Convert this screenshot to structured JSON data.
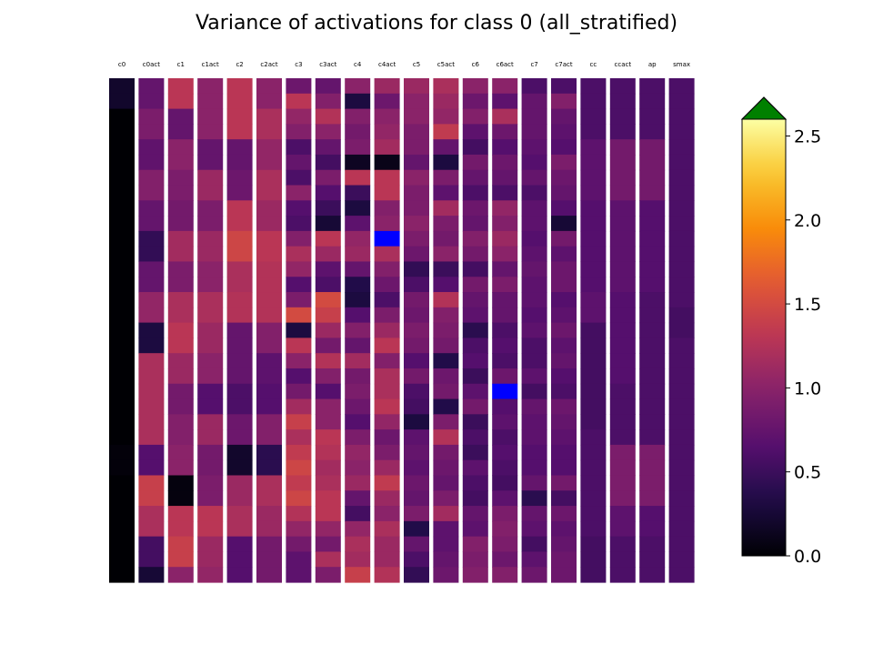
{
  "chart_data": {
    "type": "heatmap",
    "title": "Variance of activations for class 0 (all_stratified)",
    "columns": [
      "c0",
      "c0act",
      "c1",
      "c1act",
      "c2",
      "c2act",
      "c3",
      "c3act",
      "c4",
      "c4act",
      "c5",
      "c5act",
      "c6",
      "c6act",
      "c7",
      "c7act",
      "cc",
      "ccact",
      "ap",
      "smax"
    ],
    "colorbar": {
      "colormap": "inferno",
      "vmin": 0.0,
      "vmax": 2.6,
      "ticks": [
        0.0,
        0.5,
        1.0,
        1.5,
        2.0,
        2.5
      ],
      "tick_labels": [
        "0.0",
        "0.5",
        "1.0",
        "1.5",
        "2.0",
        "2.5"
      ],
      "extend": "max",
      "over_color": "#008000",
      "under_color": "#0000ff"
    },
    "columns_data": [
      {
        "name": "c0",
        "bins": 33,
        "values": [
          0.2,
          0.2,
          0,
          0,
          0,
          0,
          0,
          0,
          0,
          0,
          0,
          0,
          0,
          0,
          0,
          0,
          0,
          0,
          0,
          0,
          0,
          0,
          0,
          0,
          0.03,
          0.03,
          0,
          0,
          0,
          0,
          0,
          0,
          0
        ]
      },
      {
        "name": "c0act",
        "bins": 33,
        "values": [
          0.75,
          0.75,
          0.9,
          0.9,
          0.72,
          0.72,
          0.95,
          0.95,
          0.75,
          0.75,
          0.45,
          0.45,
          0.75,
          0.75,
          1.05,
          1.05,
          0.3,
          0.3,
          1.2,
          1.2,
          1.2,
          1.2,
          1.2,
          1.2,
          0.65,
          0.65,
          1.4,
          1.4,
          1.2,
          1.2,
          0.55,
          0.55,
          0.25
        ]
      },
      {
        "name": "c1",
        "bins": 33,
        "values": [
          1.3,
          1.3,
          0.75,
          0.75,
          1.0,
          1.0,
          0.9,
          0.9,
          0.85,
          0.85,
          1.15,
          1.15,
          0.9,
          0.9,
          1.2,
          1.2,
          1.3,
          1.3,
          1.1,
          1.1,
          0.85,
          0.85,
          0.95,
          0.95,
          1.0,
          1.0,
          0.05,
          0.05,
          1.3,
          1.3,
          1.4,
          1.4,
          1.0
        ]
      },
      {
        "name": "c1act",
        "bins": 33,
        "values": [
          1.0,
          1.0,
          1.0,
          1.0,
          0.75,
          0.75,
          1.1,
          1.1,
          0.9,
          0.9,
          1.1,
          1.1,
          1.0,
          1.0,
          1.2,
          1.2,
          1.1,
          1.1,
          1.0,
          1.0,
          0.65,
          0.65,
          1.1,
          1.1,
          0.85,
          0.85,
          0.9,
          0.9,
          1.3,
          1.3,
          1.1,
          1.1,
          1.05
        ]
      },
      {
        "name": "c2",
        "bins": 33,
        "values": [
          1.3,
          1.3,
          1.3,
          1.3,
          0.75,
          0.75,
          0.8,
          0.8,
          1.3,
          1.3,
          1.45,
          1.45,
          1.2,
          1.2,
          1.25,
          1.25,
          0.75,
          0.75,
          0.75,
          0.75,
          0.6,
          0.6,
          0.8,
          0.8,
          0.2,
          0.2,
          1.1,
          1.1,
          1.2,
          1.2,
          0.65,
          0.65,
          0.65
        ]
      },
      {
        "name": "c2act",
        "bins": 33,
        "values": [
          1.0,
          1.0,
          1.2,
          1.2,
          1.05,
          1.05,
          1.2,
          1.2,
          1.1,
          1.1,
          1.3,
          1.3,
          1.25,
          1.25,
          1.25,
          1.25,
          0.95,
          0.95,
          0.7,
          0.7,
          0.65,
          0.65,
          0.95,
          0.95,
          0.4,
          0.4,
          1.2,
          1.2,
          1.1,
          1.1,
          0.85,
          0.85,
          0.85
        ]
      },
      {
        "name": "c3",
        "bins": 33,
        "values": [
          0.8,
          1.3,
          1.05,
          0.95,
          0.6,
          0.75,
          0.6,
          1.0,
          0.65,
          0.6,
          0.95,
          1.2,
          1.05,
          0.65,
          0.9,
          1.5,
          0.3,
          1.3,
          1.0,
          0.65,
          0.85,
          1.15,
          1.4,
          1.2,
          1.35,
          1.45,
          1.35,
          1.45,
          1.25,
          1.05,
          0.85,
          0.7,
          0.7
        ]
      },
      {
        "name": "c3act",
        "bins": 33,
        "values": [
          0.75,
          0.95,
          1.25,
          1.0,
          0.75,
          0.55,
          0.9,
          0.65,
          0.5,
          0.25,
          1.3,
          1.1,
          0.7,
          0.6,
          1.5,
          1.4,
          1.1,
          0.85,
          1.25,
          0.95,
          0.65,
          1.0,
          1.0,
          1.3,
          1.25,
          1.15,
          1.2,
          1.3,
          1.3,
          1.05,
          0.85,
          1.2,
          0.9
        ]
      },
      {
        "name": "c4",
        "bins": 33,
        "values": [
          1.0,
          0.3,
          0.95,
          0.85,
          0.9,
          0.15,
          1.3,
          0.5,
          0.3,
          0.7,
          1.05,
          1.1,
          0.75,
          0.35,
          0.3,
          0.65,
          0.95,
          0.75,
          1.15,
          0.85,
          0.9,
          0.8,
          0.65,
          0.9,
          1.05,
          1.0,
          1.1,
          0.75,
          0.55,
          1.05,
          1.2,
          1.15,
          1.4
        ]
      },
      {
        "name": "c4act",
        "bins": 33,
        "values": [
          1.1,
          0.8,
          1.0,
          1.05,
          1.15,
          0.1,
          1.3,
          1.3,
          0.95,
          1.0,
          -1,
          1.2,
          0.95,
          0.8,
          0.6,
          0.9,
          1.1,
          1.3,
          0.95,
          1.2,
          1.2,
          1.3,
          1.05,
          0.8,
          0.9,
          1.1,
          1.35,
          1.1,
          1.0,
          1.2,
          1.1,
          1.1,
          1.25
        ]
      },
      {
        "name": "c5",
        "bins": 33,
        "values": [
          1.1,
          1.0,
          1.0,
          0.9,
          0.9,
          0.75,
          1.0,
          0.9,
          0.9,
          1.0,
          0.9,
          0.8,
          0.45,
          0.6,
          0.85,
          0.8,
          0.9,
          0.85,
          0.65,
          0.85,
          0.6,
          0.55,
          0.3,
          0.7,
          0.75,
          0.7,
          0.8,
          0.75,
          0.9,
          0.35,
          0.75,
          0.6,
          0.45
        ]
      },
      {
        "name": "c5act",
        "bins": 33,
        "values": [
          1.2,
          1.1,
          1.05,
          1.35,
          0.75,
          0.3,
          0.9,
          0.7,
          1.15,
          0.9,
          0.85,
          1.0,
          0.5,
          0.65,
          1.25,
          0.95,
          0.9,
          0.85,
          0.35,
          0.8,
          0.85,
          0.35,
          0.9,
          1.25,
          0.85,
          0.8,
          0.75,
          0.9,
          1.15,
          0.7,
          0.7,
          0.75,
          0.8
        ]
      },
      {
        "name": "c6",
        "bins": 33,
        "values": [
          1.0,
          0.8,
          0.95,
          0.7,
          0.55,
          0.85,
          0.75,
          0.6,
          0.8,
          0.75,
          0.95,
          0.85,
          0.55,
          0.85,
          0.75,
          0.7,
          0.4,
          0.6,
          0.65,
          0.5,
          0.7,
          0.85,
          0.5,
          0.6,
          0.5,
          0.7,
          0.6,
          0.55,
          0.75,
          0.7,
          0.95,
          0.9,
          0.95
        ]
      },
      {
        "name": "c6act",
        "bins": 33,
        "values": [
          1.0,
          0.7,
          1.2,
          0.8,
          0.65,
          0.8,
          0.75,
          0.6,
          1.05,
          0.95,
          1.1,
          1.0,
          0.75,
          0.9,
          0.75,
          0.75,
          0.6,
          0.65,
          0.6,
          0.8,
          -1,
          0.65,
          0.7,
          0.6,
          0.65,
          0.6,
          0.55,
          0.7,
          0.9,
          0.95,
          0.9,
          0.8,
          0.95
        ]
      },
      {
        "name": "c7",
        "bins": 33,
        "values": [
          0.6,
          0.75,
          0.75,
          0.75,
          0.7,
          0.65,
          0.75,
          0.6,
          0.7,
          0.7,
          0.65,
          0.7,
          0.75,
          0.7,
          0.7,
          0.65,
          0.7,
          0.6,
          0.6,
          0.7,
          0.55,
          0.75,
          0.7,
          0.7,
          0.65,
          0.65,
          0.75,
          0.4,
          0.75,
          0.7,
          0.55,
          0.7,
          0.8
        ]
      },
      {
        "name": "c7act",
        "bins": 33,
        "values": [
          0.6,
          0.95,
          0.75,
          0.7,
          0.65,
          0.9,
          0.8,
          0.75,
          0.65,
          0.25,
          0.85,
          0.7,
          0.8,
          0.8,
          0.65,
          0.7,
          0.8,
          0.7,
          0.75,
          0.65,
          0.6,
          0.8,
          0.75,
          0.7,
          0.65,
          0.65,
          0.85,
          0.55,
          0.8,
          0.7,
          0.75,
          0.8,
          0.8
        ]
      },
      {
        "name": "cc",
        "bins": 33,
        "values": [
          0.6,
          0.6,
          0.6,
          0.6,
          0.7,
          0.7,
          0.7,
          0.7,
          0.65,
          0.65,
          0.65,
          0.65,
          0.65,
          0.65,
          0.7,
          0.7,
          0.55,
          0.55,
          0.55,
          0.55,
          0.55,
          0.55,
          0.55,
          0.6,
          0.6,
          0.6,
          0.6,
          0.6,
          0.6,
          0.6,
          0.55,
          0.55,
          0.55
        ]
      },
      {
        "name": "ccact",
        "bins": 33,
        "values": [
          0.6,
          0.6,
          0.6,
          0.6,
          0.85,
          0.85,
          0.85,
          0.85,
          0.7,
          0.7,
          0.7,
          0.7,
          0.7,
          0.7,
          0.65,
          0.65,
          0.65,
          0.65,
          0.65,
          0.65,
          0.6,
          0.6,
          0.6,
          0.6,
          0.9,
          0.9,
          0.9,
          0.9,
          0.7,
          0.7,
          0.6,
          0.6,
          0.6
        ]
      },
      {
        "name": "ap",
        "bins": 33,
        "values": [
          0.6,
          0.6,
          0.6,
          0.6,
          0.85,
          0.85,
          0.85,
          0.85,
          0.65,
          0.65,
          0.65,
          0.65,
          0.65,
          0.65,
          0.6,
          0.6,
          0.6,
          0.6,
          0.6,
          0.6,
          0.6,
          0.6,
          0.6,
          0.6,
          0.9,
          0.9,
          0.9,
          0.9,
          0.65,
          0.65,
          0.6,
          0.6,
          0.6
        ]
      },
      {
        "name": "smax",
        "bins": 33,
        "values": [
          0.6,
          0.6,
          0.6,
          0.6,
          0.6,
          0.6,
          0.6,
          0.6,
          0.6,
          0.6,
          0.6,
          0.6,
          0.6,
          0.6,
          0.6,
          0.55,
          0.55,
          0.6,
          0.6,
          0.6,
          0.6,
          0.6,
          0.6,
          0.6,
          0.6,
          0.6,
          0.6,
          0.6,
          0.6,
          0.6,
          0.6,
          0.6,
          0.6
        ]
      }
    ]
  }
}
